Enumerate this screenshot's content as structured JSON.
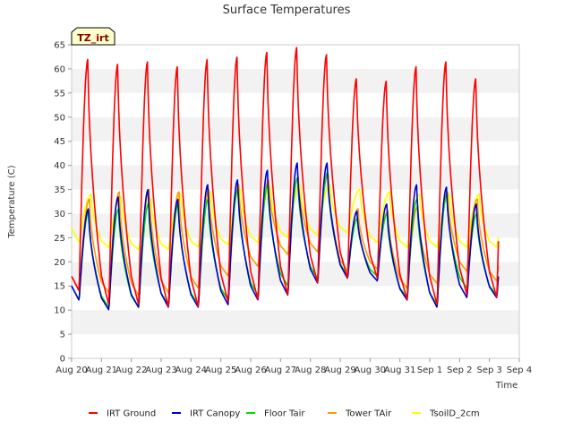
{
  "chart_data": {
    "type": "line",
    "title": "Surface Temperatures",
    "xlabel": "Time",
    "ylabel": "Temperature (C)",
    "site_label": "TZ_irt",
    "ylim": [
      0,
      65
    ],
    "yticks": [
      0,
      5,
      10,
      15,
      20,
      25,
      30,
      35,
      40,
      45,
      50,
      55,
      60,
      65
    ],
    "xlim": [
      0,
      15
    ],
    "xticks": [
      "Aug 20",
      "Aug 21",
      "Aug 22",
      "Aug 23",
      "Aug 24",
      "Aug 25",
      "Aug 26",
      "Aug 27",
      "Aug 28",
      "Aug 29",
      "Aug 30",
      "Aug 31",
      "Sep 1",
      "Sep 2",
      "Sep 3",
      "Sep 4"
    ],
    "grid": "horizontal bands",
    "legend_position": "bottom",
    "data_end_day": 14.3,
    "series": [
      {
        "name": "IRT Ground",
        "color": "#ff0000",
        "daily_min": [
          14,
          11,
          11,
          10.5,
          10.5,
          11.5,
          12,
          13,
          15.5,
          16.5,
          16.5,
          12,
          11,
          13,
          12.5
        ],
        "daily_max": [
          62,
          61,
          61.5,
          60.5,
          62,
          62.5,
          63.5,
          64.5,
          63,
          58,
          57.5,
          60.5,
          61.5,
          58,
          58
        ]
      },
      {
        "name": "IRT Canopy",
        "color": "#0000cc",
        "daily_min": [
          12,
          10,
          10.5,
          10.5,
          10.5,
          11,
          12,
          13,
          15.5,
          16.5,
          16,
          12,
          10.5,
          12.5,
          12.5
        ],
        "daily_max": [
          31,
          33.5,
          35,
          33,
          36,
          37,
          39,
          40.5,
          40.5,
          30.5,
          32,
          36,
          35.5,
          32,
          31
        ]
      },
      {
        "name": "Floor Tair",
        "color": "#00dd00",
        "daily_min": [
          12,
          10.5,
          10.5,
          11,
          11,
          12,
          13,
          15,
          16.5,
          17,
          17,
          12.5,
          11,
          14.5,
          13
        ],
        "daily_max": [
          30.5,
          31,
          32,
          32,
          33,
          35,
          36,
          37.5,
          38.5,
          29,
          30,
          33,
          34,
          30,
          29.5
        ]
      },
      {
        "name": "Tower TAir",
        "color": "#ff9900",
        "daily_min": [
          14,
          13.5,
          13,
          13.5,
          14.5,
          17,
          19,
          21.5,
          22,
          18,
          18.5,
          14.5,
          15.5,
          18,
          16
        ],
        "daily_max": [
          33,
          34.5,
          35,
          34.5,
          35,
          36,
          37,
          37.5,
          38,
          31,
          30.5,
          31.5,
          34.5,
          33,
          30
        ]
      },
      {
        "name": "TsoilD_2cm",
        "color": "#ffff00",
        "daily_min": [
          24,
          23,
          22.5,
          22.5,
          23,
          23.5,
          24,
          25,
          25.5,
          26,
          24,
          23,
          23,
          23,
          23
        ],
        "daily_max": [
          34,
          33.5,
          33,
          34,
          34.5,
          35,
          35.5,
          36,
          36,
          35,
          34.5,
          34,
          34,
          34,
          34
        ]
      }
    ]
  }
}
